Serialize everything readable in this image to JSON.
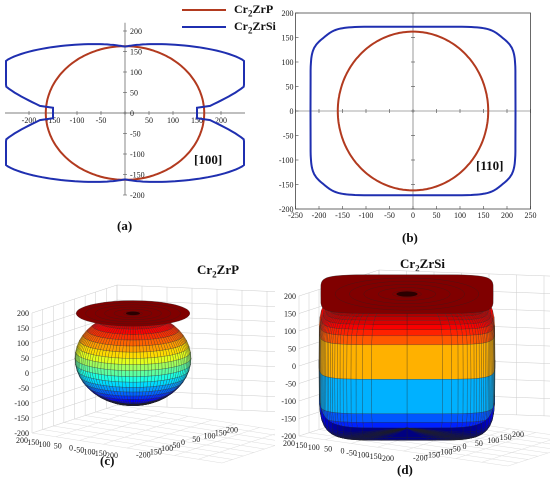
{
  "legend": [
    {
      "name": "Cr2ZrP",
      "color": "#b23a1f"
    },
    {
      "name": "Cr2ZrSi",
      "color": "#1f2fb0"
    }
  ],
  "panels": {
    "a": {
      "label": "(a)",
      "direction": "[100]"
    },
    "b": {
      "label": "(b)",
      "direction": "[110]"
    },
    "c": {
      "label": "(c)",
      "title": "Cr2ZrP"
    },
    "d": {
      "label": "(d)",
      "title": "Cr2ZrSi"
    }
  },
  "chart_data": [
    {
      "type": "line",
      "panel": "a",
      "subtype": "polar",
      "xlim": [
        -250,
        250
      ],
      "ylim": [
        -200,
        220
      ],
      "x_ticks": [
        -200,
        -150,
        -100,
        -50,
        0,
        50,
        100,
        150,
        200
      ],
      "y_ticks": [
        200,
        150,
        100,
        50,
        0,
        -50,
        -100,
        -150,
        -200
      ],
      "series": [
        {
          "name": "Cr2ZrP",
          "color": "#b23a1f",
          "shape": "ellipse",
          "radius_x": 165,
          "radius_y": 163
        },
        {
          "name": "Cr2ZrSi",
          "color": "#1f2fb0",
          "shape": "butterfly",
          "extent_x": 248,
          "extent_y": 185,
          "axis_crossing_x": 150,
          "axis_crossing_y": 162
        }
      ]
    },
    {
      "type": "line",
      "panel": "b",
      "subtype": "polar",
      "xlim": [
        -250,
        250
      ],
      "ylim": [
        -200,
        200
      ],
      "x_ticks": [
        -250,
        -200,
        -150,
        -100,
        -50,
        0,
        50,
        100,
        150,
        200,
        250
      ],
      "y_ticks": [
        200,
        150,
        100,
        50,
        0,
        -50,
        -100,
        -150,
        -200
      ],
      "series": [
        {
          "name": "Cr2ZrP",
          "color": "#b23a1f",
          "shape": "ellipse",
          "radius_x": 160,
          "radius_y": 162
        },
        {
          "name": "Cr2ZrSi",
          "color": "#1f2fb0",
          "shape": "rounded-square",
          "extent_x": 218,
          "extent_y": 172
        }
      ]
    },
    {
      "type": "surface3d",
      "panel": "c",
      "title": "Cr2ZrP",
      "x_ticks": [
        -200,
        -150,
        -100,
        -50,
        0,
        50,
        100,
        150,
        200
      ],
      "y_ticks": [
        -200,
        -150,
        -100,
        -50,
        0,
        50,
        100,
        150,
        200
      ],
      "z_ticks": [
        200,
        150,
        100,
        50,
        0,
        -50,
        -100,
        -150,
        -200
      ],
      "shape": "oblate-spheroid",
      "colormap": "jet"
    },
    {
      "type": "surface3d",
      "panel": "d",
      "title": "Cr2ZrSi",
      "x_ticks": [
        -200,
        -150,
        -100,
        -50,
        0,
        50,
        100,
        150,
        200
      ],
      "y_ticks": [
        -200,
        -150,
        -100,
        -50,
        0,
        50,
        100,
        150,
        200
      ],
      "z_ticks": [
        200,
        150,
        100,
        50,
        0,
        -50,
        -100,
        -150,
        -200
      ],
      "shape": "rounded-cube",
      "colormap": "jet"
    }
  ]
}
